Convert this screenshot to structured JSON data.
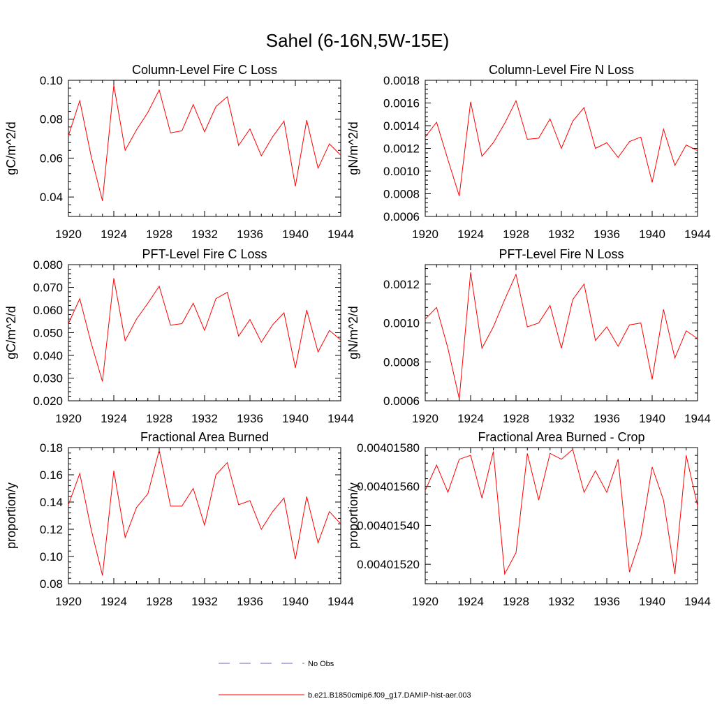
{
  "figure": {
    "title": "Sahel (6-16N,5W-15E)",
    "line_color": "#ff0000",
    "obs_color": "#6666cc"
  },
  "legend": {
    "placement": "bottom-center",
    "items": [
      {
        "label": "No Obs",
        "style": "dashed"
      },
      {
        "label": "b.e21.B1850cmip6.f09_g17.DAMIP-hist-aer.003",
        "style": "solid"
      }
    ]
  },
  "chart_data": [
    {
      "type": "line",
      "title": "Column-Level Fire C Loss",
      "ylabel": "gC/m^2/d",
      "xlim": [
        1920,
        1944
      ],
      "ylim": [
        0.03,
        0.1
      ],
      "xticks": [
        1920,
        1924,
        1928,
        1932,
        1936,
        1940,
        1944
      ],
      "xtick_labels": [
        "1920",
        "1924",
        "1928",
        "1932",
        "1936",
        "1940",
        "1944"
      ],
      "yticks": [
        0.04,
        0.06,
        0.08,
        0.1
      ],
      "ytick_labels": [
        "0.04",
        "0.06",
        "0.08",
        "0.10"
      ],
      "x": [
        1920,
        1921,
        1922,
        1923,
        1924,
        1925,
        1926,
        1927,
        1928,
        1929,
        1930,
        1931,
        1932,
        1933,
        1934,
        1935,
        1936,
        1937,
        1938,
        1939,
        1940,
        1941,
        1942,
        1943,
        1944
      ],
      "series": [
        {
          "name": "b.e21.B1850cmip6.f09_g17.DAMIP-hist-aer.003",
          "values": [
            0.0715,
            0.0895,
            0.061,
            0.038,
            0.0975,
            0.064,
            0.0745,
            0.0835,
            0.095,
            0.073,
            0.074,
            0.0875,
            0.0735,
            0.0865,
            0.0915,
            0.0665,
            0.075,
            0.0612,
            0.071,
            0.079,
            0.0455,
            0.0795,
            0.0548,
            0.0673,
            0.0615
          ]
        }
      ]
    },
    {
      "type": "line",
      "title": "Column-Level Fire N Loss",
      "ylabel": "gN/m^2/d",
      "xlim": [
        1920,
        1944
      ],
      "ylim": [
        0.0006,
        0.0018
      ],
      "xticks": [
        1920,
        1924,
        1928,
        1932,
        1936,
        1940,
        1944
      ],
      "xtick_labels": [
        "1920",
        "1924",
        "1928",
        "1932",
        "1936",
        "1940",
        "1944"
      ],
      "yticks": [
        0.0006,
        0.0008,
        0.001,
        0.0012,
        0.0014,
        0.0016,
        0.0018
      ],
      "ytick_labels": [
        "0.0006",
        "0.0008",
        "0.0010",
        "0.0012",
        "0.0014",
        "0.0016",
        "0.0018"
      ],
      "x": [
        1920,
        1921,
        1922,
        1923,
        1924,
        1925,
        1926,
        1927,
        1928,
        1929,
        1930,
        1931,
        1932,
        1933,
        1934,
        1935,
        1936,
        1937,
        1938,
        1939,
        1940,
        1941,
        1942,
        1943,
        1944
      ],
      "series": [
        {
          "name": "b.e21.B1850cmip6.f09_g17.DAMIP-hist-aer.003",
          "values": [
            0.0013,
            0.00143,
            0.0011,
            0.00078,
            0.00161,
            0.00113,
            0.00125,
            0.00142,
            0.00162,
            0.00128,
            0.00129,
            0.00146,
            0.0012,
            0.00144,
            0.00156,
            0.0012,
            0.00125,
            0.00112,
            0.00126,
            0.0013,
            0.0009,
            0.00137,
            0.00105,
            0.00123,
            0.00118
          ]
        }
      ]
    },
    {
      "type": "line",
      "title": "PFT-Level Fire C Loss",
      "ylabel": "gC/m^2/d",
      "xlim": [
        1920,
        1944
      ],
      "ylim": [
        0.02,
        0.08
      ],
      "xticks": [
        1920,
        1924,
        1928,
        1932,
        1936,
        1940,
        1944
      ],
      "xtick_labels": [
        "1920",
        "1924",
        "1928",
        "1932",
        "1936",
        "1940",
        "1944"
      ],
      "yticks": [
        0.02,
        0.03,
        0.04,
        0.05,
        0.06,
        0.07,
        0.08
      ],
      "ytick_labels": [
        "0.020",
        "0.030",
        "0.040",
        "0.050",
        "0.060",
        "0.070",
        "0.080"
      ],
      "x": [
        1920,
        1921,
        1922,
        1923,
        1924,
        1925,
        1926,
        1927,
        1928,
        1929,
        1930,
        1931,
        1932,
        1933,
        1934,
        1935,
        1936,
        1937,
        1938,
        1939,
        1940,
        1941,
        1942,
        1943,
        1944
      ],
      "series": [
        {
          "name": "b.e21.B1850cmip6.f09_g17.DAMIP-hist-aer.003",
          "values": [
            0.054,
            0.065,
            0.0455,
            0.0285,
            0.074,
            0.0465,
            0.056,
            0.063,
            0.0705,
            0.0533,
            0.054,
            0.063,
            0.051,
            0.065,
            0.0678,
            0.0485,
            0.0558,
            0.0458,
            0.0535,
            0.0588,
            0.0345,
            0.06,
            0.0415,
            0.051,
            0.0468
          ]
        }
      ]
    },
    {
      "type": "line",
      "title": "PFT-Level Fire N Loss",
      "ylabel": "gN/m^2/d",
      "xlim": [
        1920,
        1944
      ],
      "ylim": [
        0.0006,
        0.0013
      ],
      "xticks": [
        1920,
        1924,
        1928,
        1932,
        1936,
        1940,
        1944
      ],
      "xtick_labels": [
        "1920",
        "1924",
        "1928",
        "1932",
        "1936",
        "1940",
        "1944"
      ],
      "yticks": [
        0.0006,
        0.0008,
        0.001,
        0.0012
      ],
      "ytick_labels": [
        "0.0006",
        "0.0008",
        "0.0010",
        "0.0012"
      ],
      "x": [
        1920,
        1921,
        1922,
        1923,
        1924,
        1925,
        1926,
        1927,
        1928,
        1929,
        1930,
        1931,
        1932,
        1933,
        1934,
        1935,
        1936,
        1937,
        1938,
        1939,
        1940,
        1941,
        1942,
        1943,
        1944
      ],
      "series": [
        {
          "name": "b.e21.B1850cmip6.f09_g17.DAMIP-hist-aer.003",
          "values": [
            0.00102,
            0.00108,
            0.00087,
            0.00061,
            0.00126,
            0.00087,
            0.00098,
            0.00112,
            0.00125,
            0.00098,
            0.001,
            0.00109,
            0.00087,
            0.00112,
            0.0012,
            0.00091,
            0.00098,
            0.00088,
            0.00099,
            0.001,
            0.00071,
            0.00107,
            0.00082,
            0.00096,
            0.00092
          ]
        }
      ]
    },
    {
      "type": "line",
      "title": "Fractional Area Burned",
      "ylabel": "proportion/y",
      "xlim": [
        1920,
        1944
      ],
      "ylim": [
        0.08,
        0.18
      ],
      "xticks": [
        1920,
        1924,
        1928,
        1932,
        1936,
        1940,
        1944
      ],
      "xtick_labels": [
        "1920",
        "1924",
        "1928",
        "1932",
        "1936",
        "1940",
        "1944"
      ],
      "yticks": [
        0.08,
        0.1,
        0.12,
        0.14,
        0.16,
        0.18
      ],
      "ytick_labels": [
        "0.08",
        "0.10",
        "0.12",
        "0.14",
        "0.16",
        "0.18"
      ],
      "x": [
        1920,
        1921,
        1922,
        1923,
        1924,
        1925,
        1926,
        1927,
        1928,
        1929,
        1930,
        1931,
        1932,
        1933,
        1934,
        1935,
        1936,
        1937,
        1938,
        1939,
        1940,
        1941,
        1942,
        1943,
        1944
      ],
      "series": [
        {
          "name": "b.e21.B1850cmip6.f09_g17.DAMIP-hist-aer.003",
          "values": [
            0.138,
            0.161,
            0.12,
            0.086,
            0.163,
            0.114,
            0.136,
            0.146,
            0.178,
            0.137,
            0.137,
            0.15,
            0.123,
            0.16,
            0.169,
            0.138,
            0.141,
            0.12,
            0.133,
            0.143,
            0.098,
            0.144,
            0.11,
            0.133,
            0.124
          ]
        }
      ]
    },
    {
      "type": "line",
      "title": "Fractional Area Burned - Crop",
      "ylabel": "proportion/y",
      "xlim": [
        1920,
        1944
      ],
      "ylim": [
        0.0040151,
        0.0040158
      ],
      "xticks": [
        1920,
        1924,
        1928,
        1932,
        1936,
        1940,
        1944
      ],
      "xtick_labels": [
        "1920",
        "1924",
        "1928",
        "1932",
        "1936",
        "1940",
        "1944"
      ],
      "yticks": [
        0.0040152,
        0.0040154,
        0.0040156,
        0.0040158
      ],
      "ytick_labels": [
        "0.00401520",
        "0.00401540",
        "0.00401560",
        "0.00401580"
      ],
      "x": [
        1920,
        1921,
        1922,
        1923,
        1924,
        1925,
        1926,
        1927,
        1928,
        1929,
        1930,
        1931,
        1932,
        1933,
        1934,
        1935,
        1936,
        1937,
        1938,
        1939,
        1940,
        1941,
        1942,
        1943,
        1944
      ],
      "series": [
        {
          "name": "b.e21.B1850cmip6.f09_g17.DAMIP-hist-aer.003",
          "values": [
            0.00401558,
            0.00401571,
            0.00401557,
            0.00401574,
            0.00401576,
            0.00401554,
            0.00401578,
            0.00401515,
            0.00401526,
            0.00401577,
            0.00401553,
            0.00401577,
            0.00401574,
            0.00401579,
            0.00401557,
            0.00401568,
            0.00401557,
            0.00401574,
            0.00401516,
            0.00401534,
            0.0040157,
            0.00401553,
            0.00401515,
            0.00401576,
            0.0040155
          ]
        }
      ]
    }
  ]
}
